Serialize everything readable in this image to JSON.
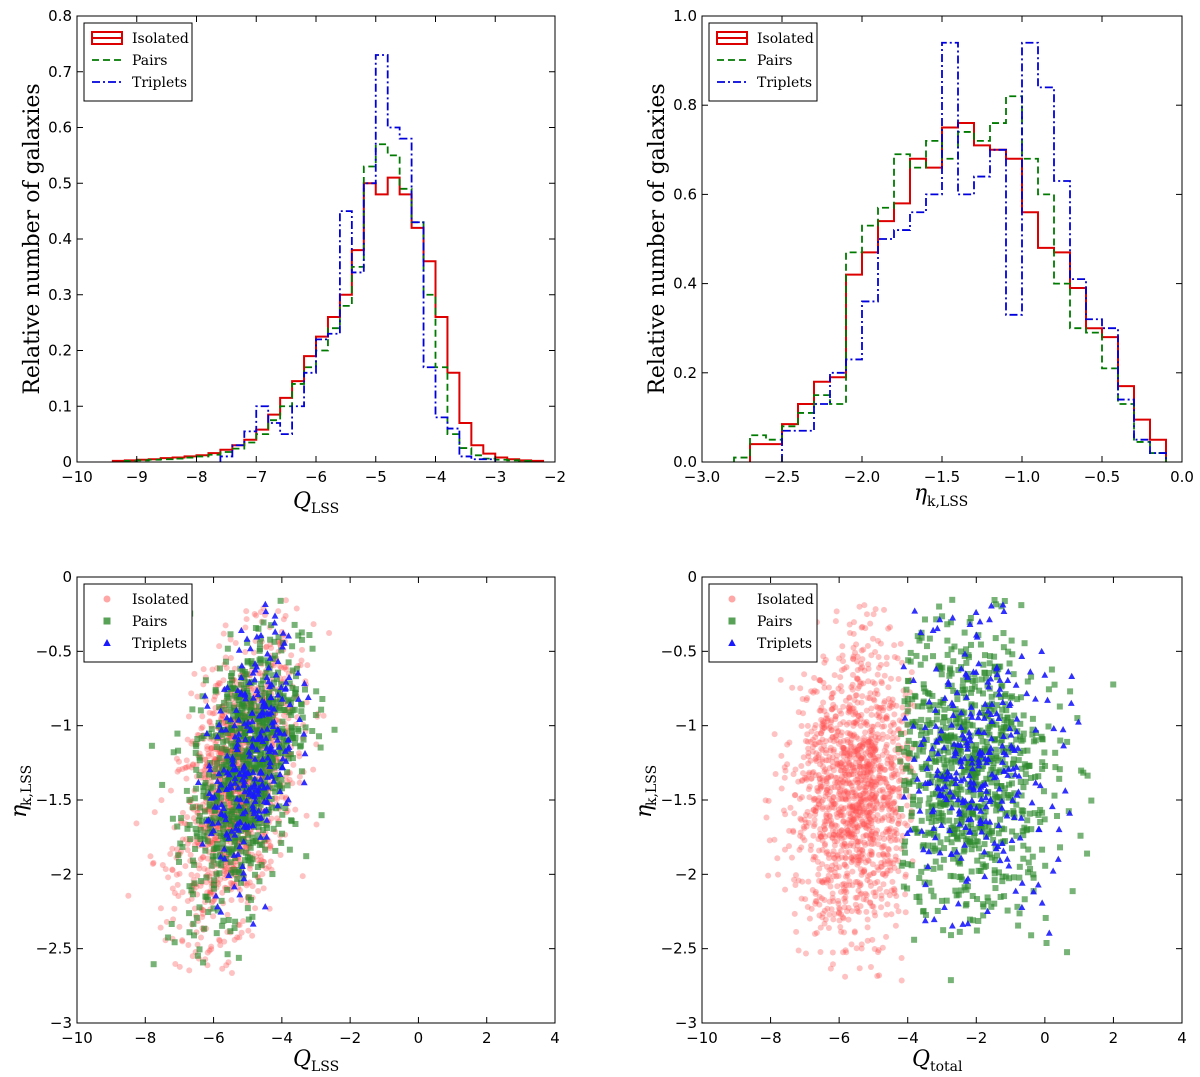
{
  "chart_data": [
    {
      "type": "histogram-step",
      "id": "p1",
      "xlabel": "Q",
      "xlabel_sub": "LSS",
      "ylabel": "Relative number of galaxies",
      "xlim": [
        -10,
        -2
      ],
      "ylim": [
        0,
        0.8
      ],
      "xticks": [
        -10,
        -9,
        -8,
        -7,
        -6,
        -5,
        -4,
        -3,
        -2
      ],
      "yticks": [
        0.0,
        0.1,
        0.2,
        0.3,
        0.4,
        0.5,
        0.6,
        0.7,
        0.8
      ],
      "legend": "top-left",
      "series": [
        {
          "name": "Isolated",
          "color": "#dd0000",
          "dash": "",
          "edges": [
            -9.4,
            -9.2,
            -9.0,
            -8.8,
            -8.6,
            -8.4,
            -8.2,
            -8.0,
            -7.8,
            -7.6,
            -7.4,
            -7.2,
            -7.0,
            -6.8,
            -6.6,
            -6.4,
            -6.2,
            -6.0,
            -5.8,
            -5.6,
            -5.4,
            -5.2,
            -5.0,
            -4.8,
            -4.6,
            -4.4,
            -4.2,
            -4.0,
            -3.8,
            -3.6,
            -3.4,
            -3.2,
            -3.0,
            -2.8,
            -2.6,
            -2.4,
            -2.2
          ],
          "values": [
            0.002,
            0.003,
            0.004,
            0.005,
            0.007,
            0.008,
            0.01,
            0.012,
            0.016,
            0.022,
            0.03,
            0.04,
            0.058,
            0.085,
            0.115,
            0.145,
            0.19,
            0.225,
            0.26,
            0.3,
            0.38,
            0.5,
            0.48,
            0.51,
            0.48,
            0.42,
            0.36,
            0.26,
            0.16,
            0.07,
            0.03,
            0.015,
            0.008,
            0.005,
            0.003,
            0.002
          ]
        },
        {
          "name": "Pairs",
          "color": "#007a00",
          "dash": "7,4",
          "edges": [
            -9.2,
            -9.0,
            -8.8,
            -8.6,
            -8.4,
            -8.2,
            -8.0,
            -7.8,
            -7.6,
            -7.4,
            -7.2,
            -7.0,
            -6.8,
            -6.6,
            -6.4,
            -6.2,
            -6.0,
            -5.8,
            -5.6,
            -5.4,
            -5.2,
            -5.0,
            -4.8,
            -4.6,
            -4.4,
            -4.2,
            -4.0,
            -3.8,
            -3.6,
            -3.4,
            -3.2,
            -3.0,
            -2.8,
            -2.6,
            -2.4
          ],
          "values": [
            0.002,
            0.003,
            0.004,
            0.005,
            0.006,
            0.008,
            0.01,
            0.013,
            0.018,
            0.024,
            0.035,
            0.05,
            0.075,
            0.1,
            0.14,
            0.17,
            0.2,
            0.24,
            0.28,
            0.35,
            0.53,
            0.57,
            0.55,
            0.49,
            0.43,
            0.3,
            0.17,
            0.05,
            0.025,
            0.012,
            0.006,
            0.004,
            0.003,
            0.002
          ]
        },
        {
          "name": "Triplets",
          "color": "#0000dd",
          "dash": "8,3,2,3",
          "edges": [
            -7.6,
            -7.4,
            -7.2,
            -7.0,
            -6.8,
            -6.6,
            -6.4,
            -6.2,
            -6.0,
            -5.8,
            -5.6,
            -5.4,
            -5.2,
            -5.0,
            -4.8,
            -4.6,
            -4.4,
            -4.2,
            -4.0,
            -3.8,
            -3.6,
            -3.4,
            -3.2,
            -3.0
          ],
          "values": [
            0.01,
            0.03,
            0.055,
            0.1,
            0.07,
            0.05,
            0.1,
            0.16,
            0.22,
            0.23,
            0.45,
            0.34,
            0.5,
            0.73,
            0.6,
            0.58,
            0.43,
            0.17,
            0.08,
            0.06,
            0.01,
            0.005,
            0.005
          ]
        }
      ]
    },
    {
      "type": "histogram-step",
      "id": "p2",
      "xlabel": "η",
      "xlabel_sub": "k,LSS",
      "ylabel": "Relative number of galaxies",
      "xlim": [
        -3.0,
        0.0
      ],
      "ylim": [
        0,
        1.0
      ],
      "xticks": [
        -3.0,
        -2.5,
        -2.0,
        -1.5,
        -1.0,
        -0.5,
        0.0
      ],
      "yticks": [
        0.0,
        0.2,
        0.4,
        0.6,
        0.8,
        1.0
      ],
      "legend": "top-left",
      "series": [
        {
          "name": "Isolated",
          "color": "#dd0000",
          "dash": "",
          "edges": [
            -2.7,
            -2.6,
            -2.5,
            -2.4,
            -2.3,
            -2.2,
            -2.1,
            -2.0,
            -1.9,
            -1.8,
            -1.7,
            -1.6,
            -1.5,
            -1.4,
            -1.3,
            -1.2,
            -1.1,
            -1.0,
            -0.9,
            -0.8,
            -0.7,
            -0.6,
            -0.5,
            -0.4,
            -0.3,
            -0.2,
            -0.1
          ],
          "values": [
            0.04,
            0.04,
            0.085,
            0.13,
            0.18,
            0.19,
            0.42,
            0.47,
            0.54,
            0.58,
            0.68,
            0.66,
            0.75,
            0.76,
            0.71,
            0.7,
            0.68,
            0.56,
            0.48,
            0.47,
            0.39,
            0.3,
            0.28,
            0.17,
            0.095,
            0.05
          ]
        },
        {
          "name": "Pairs",
          "color": "#007a00",
          "dash": "7,4",
          "edges": [
            -2.8,
            -2.7,
            -2.6,
            -2.5,
            -2.4,
            -2.3,
            -2.2,
            -2.1,
            -2.0,
            -1.9,
            -1.8,
            -1.7,
            -1.6,
            -1.5,
            -1.4,
            -1.3,
            -1.2,
            -1.1,
            -1.0,
            -0.9,
            -0.8,
            -0.7,
            -0.6,
            -0.5,
            -0.4,
            -0.3,
            -0.2,
            -0.1
          ],
          "values": [
            0.01,
            0.06,
            0.05,
            0.08,
            0.11,
            0.15,
            0.13,
            0.47,
            0.53,
            0.57,
            0.69,
            0.66,
            0.72,
            0.68,
            0.74,
            0.72,
            0.76,
            0.82,
            0.68,
            0.6,
            0.4,
            0.3,
            0.29,
            0.21,
            0.13,
            0.045,
            0.02
          ]
        },
        {
          "name": "Triplets",
          "color": "#0000dd",
          "dash": "8,3,2,3",
          "edges": [
            -2.5,
            -2.4,
            -2.3,
            -2.2,
            -2.1,
            -2.0,
            -1.9,
            -1.8,
            -1.7,
            -1.6,
            -1.5,
            -1.4,
            -1.3,
            -1.2,
            -1.1,
            -1.0,
            -0.9,
            -0.8,
            -0.7,
            -0.6,
            -0.5,
            -0.4,
            -0.3,
            -0.2,
            -0.1
          ],
          "values": [
            0.07,
            0.07,
            0.13,
            0.2,
            0.23,
            0.36,
            0.5,
            0.52,
            0.56,
            0.6,
            0.94,
            0.6,
            0.64,
            0.7,
            0.33,
            0.94,
            0.84,
            0.63,
            0.41,
            0.32,
            0.3,
            0.14,
            0.05,
            0.02
          ]
        }
      ]
    },
    {
      "type": "scatter",
      "id": "p3",
      "xlabel": "Q",
      "xlabel_sub": "LSS",
      "ylabel": "η",
      "ylabel_sub": "k,LSS",
      "xlim": [
        -10,
        4
      ],
      "ylim": [
        -3.0,
        0.0
      ],
      "xticks": [
        -10,
        -8,
        -6,
        -4,
        -2,
        0,
        2,
        4
      ],
      "yticks": [
        -3.0,
        -2.5,
        -2.0,
        -1.5,
        -1.0,
        -0.5,
        0.0
      ],
      "legend": "top-left",
      "series": [
        {
          "name": "Isolated",
          "color": "#ff5050",
          "marker": "circle",
          "n": 1400,
          "cx": -5.3,
          "sx": 0.85,
          "cy": -1.4,
          "sy": 0.48,
          "rho": 0.45
        },
        {
          "name": "Pairs",
          "color": "#2e8b2e",
          "marker": "square",
          "n": 850,
          "cx": -5.1,
          "sx": 0.8,
          "cy": -1.3,
          "sy": 0.46,
          "rho": 0.45
        },
        {
          "name": "Triplets",
          "color": "#1a1aff",
          "marker": "triangle",
          "n": 300,
          "cx": -4.9,
          "sx": 0.65,
          "cy": -1.2,
          "sy": 0.42,
          "rho": 0.45
        }
      ]
    },
    {
      "type": "scatter",
      "id": "p4",
      "xlabel": "Q",
      "xlabel_sub": "total",
      "ylabel": "η",
      "ylabel_sub": "k,LSS",
      "xlim": [
        -10,
        4
      ],
      "ylim": [
        -3.0,
        0.0
      ],
      "xticks": [
        -10,
        -8,
        -6,
        -4,
        -2,
        0,
        2,
        4
      ],
      "yticks": [
        -3.0,
        -2.5,
        -2.0,
        -1.5,
        -1.0,
        -0.5,
        0.0
      ],
      "legend": "top-left",
      "series": [
        {
          "name": "Isolated",
          "color": "#ff5050",
          "marker": "circle",
          "n": 1400,
          "cx": -5.5,
          "sx": 0.9,
          "cy": -1.45,
          "sy": 0.48,
          "rho": 0.1,
          "xmax": -4.0
        },
        {
          "name": "Pairs",
          "color": "#2e8b2e",
          "marker": "square",
          "n": 850,
          "cx": -2.3,
          "sx": 1.3,
          "cy": -1.3,
          "sy": 0.48,
          "rho": 0.0,
          "xmin": -4.0
        },
        {
          "name": "Triplets",
          "color": "#1a1aff",
          "marker": "triangle",
          "n": 300,
          "cx": -2.0,
          "sx": 1.0,
          "cy": -1.25,
          "sy": 0.45,
          "rho": 0.0,
          "xmin": -4.0
        }
      ]
    }
  ]
}
